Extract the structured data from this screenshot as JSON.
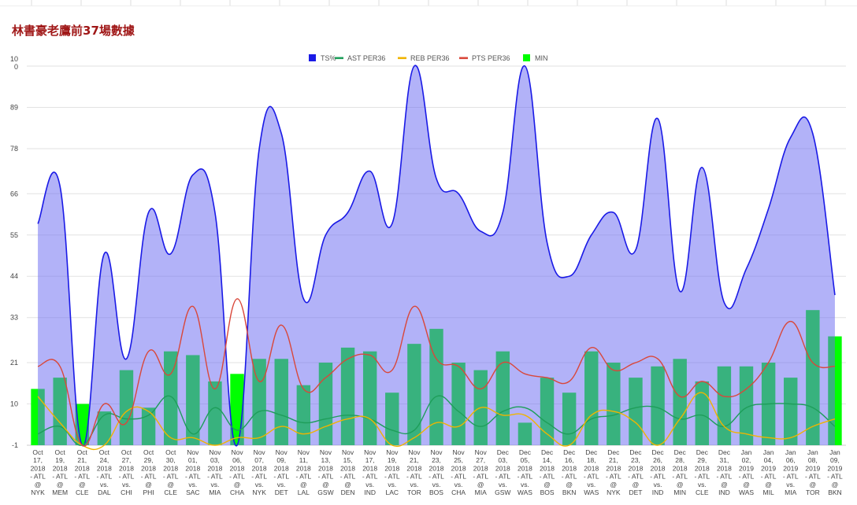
{
  "page": {
    "title": "林書豪老鷹前37場數據"
  },
  "chart_data": {
    "type": "bar+line",
    "title": "林書豪老鷹前37場數據",
    "y_range": [
      -1,
      100
    ],
    "y_ticks": [
      "-1",
      "10",
      "21",
      "33",
      "44",
      "55",
      "66",
      "78",
      "89",
      "10\n0"
    ],
    "y_tick_values": [
      -1,
      10,
      21,
      33,
      44,
      55,
      66,
      78,
      89,
      100
    ],
    "legend": [
      {
        "name": "TS%",
        "color": "#1a1ae6"
      },
      {
        "name": "AST PER36",
        "color": "#1e9e5a"
      },
      {
        "name": "REB PER36",
        "color": "#f0b400"
      },
      {
        "name": "PTS PER36",
        "color": "#d9473a"
      },
      {
        "name": "MIN",
        "color": "#00ff00"
      }
    ],
    "categories": [
      "Oct\n17,\n2018\n- ATL\n@\nNYK",
      "Oct\n19,\n2018\n- ATL\n@\nMEM",
      "Oct\n21,\n2018\n- ATL\n@\nCLE",
      "Oct\n24,\n2018\n- ATL\nvs.\nDAL",
      "Oct\n27,\n2018\n- ATL\nvs.\nCHI",
      "Oct\n29,\n2018\n- ATL\n@\nPHI",
      "Oct\n30,\n2018\n- ATL\n@\nCLE",
      "Nov\n01,\n2018\n- ATL\nvs.\nSAC",
      "Nov\n03,\n2018\n- ATL\nvs.\nMIA",
      "Nov\n06,\n2018\n- ATL\n@\nCHA",
      "Nov\n07,\n2018\n- ATL\nvs.\nNYK",
      "Nov\n09,\n2018\n- ATL\nvs.\nDET",
      "Nov\n11,\n2018\n- ATL\n@\nLAL",
      "Nov\n13,\n2018\n- ATL\n@\nGSW",
      "Nov\n15,\n2018\n- ATL\n@\nDEN",
      "Nov\n17,\n2018\n- ATL\nvs.\nIND",
      "Nov\n19,\n2018\n- ATL\nvs.\nLAC",
      "Nov\n21,\n2018\n- ATL\nvs.\nTOR",
      "Nov\n23,\n2018\n- ATL\nvs.\nBOS",
      "Nov\n25,\n2018\n- ATL\nvs.\nCHA",
      "Nov\n27,\n2018\n- ATL\n@\nMIA",
      "Dec\n03,\n2018\n- ATL\nvs.\nGSW",
      "Dec\n05,\n2018\n- ATL\nvs.\nWAS",
      "Dec\n14,\n2018\n- ATL\n@\nBOS",
      "Dec\n16,\n2018\n- ATL\n@\nBKN",
      "Dec\n18,\n2018\n- ATL\nvs.\nWAS",
      "Dec\n21,\n2018\n- ATL\n@\nNYK",
      "Dec\n23,\n2018\n- ATL\n@\nDET",
      "Dec\n26,\n2018\n- ATL\nvs.\nIND",
      "Dec\n28,\n2018\n- ATL\n@\nMIN",
      "Dec\n29,\n2018\n- ATL\nvs.\nCLE",
      "Dec\n31,\n2018\n- ATL\n@\nIND",
      "Jan\n02,\n2019\n- ATL\n@\nWAS",
      "Jan\n04,\n2019\n- ATL\n@\nMIL",
      "Jan\n06,\n2019\n- ATL\nvs.\nMIA",
      "Jan\n08,\n2019\n- ATL\n@\nTOR",
      "Jan\n09,\n2019\n- ATL\n@\nBKN"
    ],
    "series": [
      {
        "name": "MIN",
        "kind": "bar",
        "values": [
          14,
          17,
          10,
          8,
          19,
          9,
          24,
          23,
          16,
          18,
          22,
          22,
          15,
          21,
          25,
          24,
          13,
          26,
          30,
          21,
          19,
          24,
          5,
          17,
          13,
          24,
          21,
          17,
          20,
          22,
          16,
          20,
          20,
          21,
          17,
          35,
          28
        ]
      },
      {
        "name": "TS%",
        "kind": "area",
        "values": [
          58,
          68,
          -1,
          50,
          22,
          61,
          50,
          71,
          61,
          -1,
          78,
          82,
          38,
          55,
          61,
          72,
          58,
          100,
          70,
          66,
          56,
          61,
          100,
          53,
          44,
          55,
          61,
          51,
          86,
          40,
          73,
          37,
          46,
          62,
          81,
          82,
          39
        ]
      },
      {
        "name": "AST PER36",
        "kind": "line",
        "values": [
          2,
          4,
          -1,
          7,
          6,
          7,
          12,
          2,
          9,
          3,
          8,
          7,
          5,
          6,
          7,
          6,
          3,
          3,
          12,
          8,
          4,
          8,
          9,
          5,
          2,
          6,
          7,
          9,
          9,
          6,
          7,
          4,
          9,
          10,
          10,
          9,
          4
        ]
      },
      {
        "name": "REB PER36",
        "kind": "line",
        "values": [
          12,
          5,
          -1,
          -1,
          8,
          8,
          1,
          1,
          -1,
          1,
          1,
          4,
          2,
          4,
          6,
          6,
          -1,
          1,
          5,
          4,
          9,
          7,
          7,
          2,
          -1,
          7,
          8,
          5,
          -1,
          6,
          13,
          4,
          2,
          1,
          1,
          4,
          6
        ]
      },
      {
        "name": "PTS PER36",
        "kind": "line",
        "values": [
          20,
          20,
          -1,
          10,
          5,
          24,
          18,
          36,
          14,
          38,
          16,
          31,
          14,
          17,
          22,
          23,
          19,
          36,
          22,
          20,
          14,
          21,
          18,
          17,
          16,
          25,
          19,
          21,
          22,
          12,
          16,
          12,
          14,
          21,
          32,
          21,
          20
        ]
      }
    ]
  }
}
